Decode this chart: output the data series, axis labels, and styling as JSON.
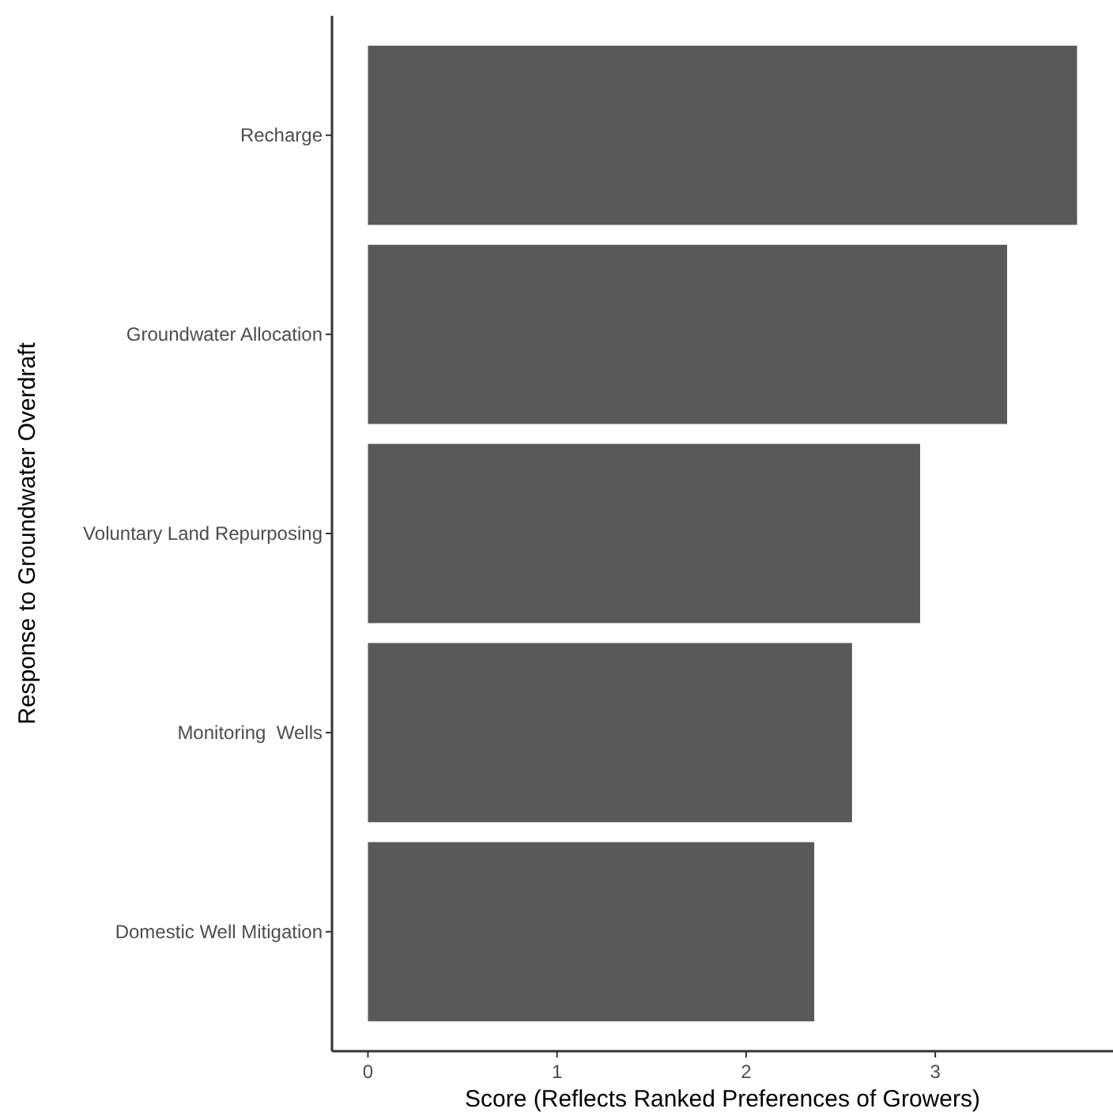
{
  "chart_data": {
    "type": "bar",
    "orientation": "horizontal",
    "xlabel": "Score (Reflects Ranked Preferences of Growers)",
    "ylabel": "Response to Groundwater Overdraft",
    "categories": [
      "Recharge",
      "Groundwater Allocation",
      "Voluntary Land Repurposing",
      "Monitoring  Wells",
      "Domestic Well Mitigation"
    ],
    "values": [
      3.75,
      3.38,
      2.92,
      2.56,
      2.36
    ],
    "color": "#595959",
    "xlim": [
      -0.19,
      3.94
    ],
    "xticks": [
      0,
      1,
      2,
      3
    ],
    "grid": false
  }
}
